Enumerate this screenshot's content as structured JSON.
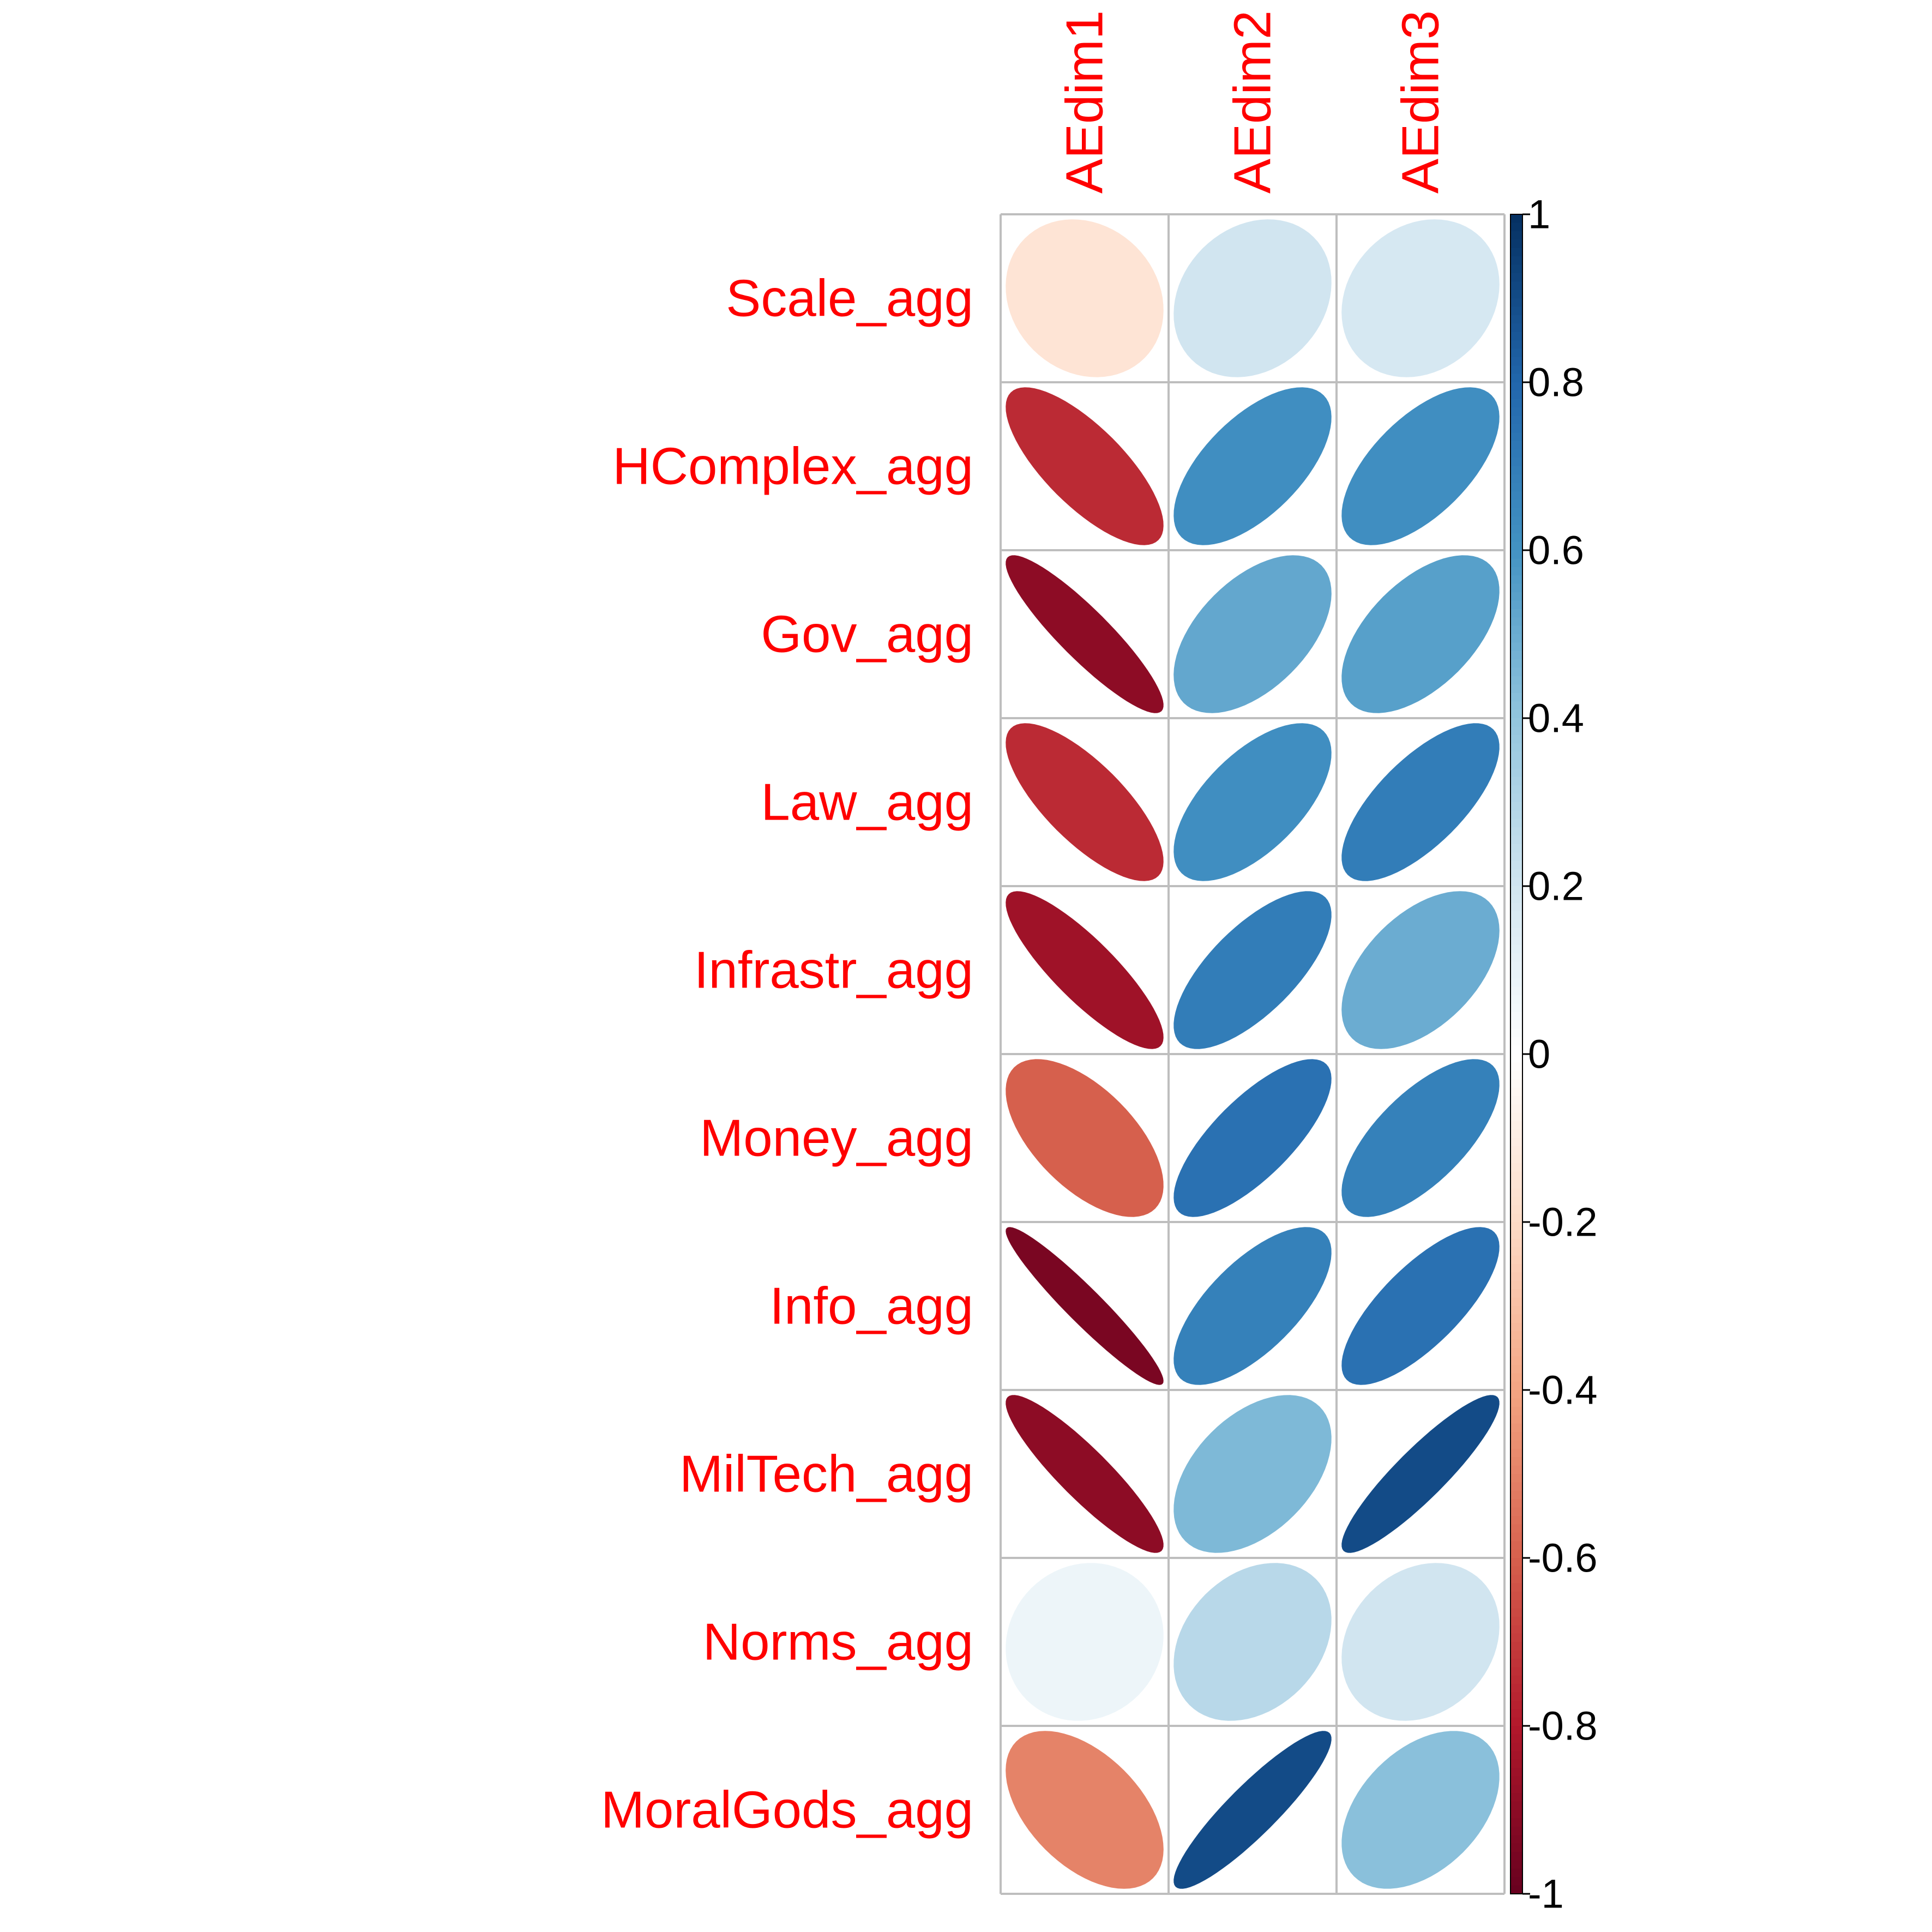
{
  "chart_data": {
    "type": "heatmap",
    "method": "ellipse",
    "rows": [
      "Scale_agg",
      "HComplex_agg",
      "Gov_agg",
      "Law_agg",
      "Infrastr_agg",
      "Money_agg",
      "Info_agg",
      "MilTech_agg",
      "Norms_agg",
      "MoralGods_agg"
    ],
    "columns": [
      "AEdim1",
      "AEdim2",
      "AEdim3"
    ],
    "values": [
      [
        -0.15,
        0.2,
        0.18
      ],
      [
        -0.75,
        0.62,
        0.62
      ],
      [
        -0.9,
        0.52,
        0.55
      ],
      [
        -0.75,
        0.62,
        0.7
      ],
      [
        -0.85,
        0.7,
        0.5
      ],
      [
        -0.6,
        0.75,
        0.68
      ],
      [
        -0.95,
        0.68,
        0.75
      ],
      [
        -0.9,
        0.45,
        0.9
      ],
      [
        0.08,
        0.28,
        0.2
      ],
      [
        -0.5,
        0.9,
        0.42
      ]
    ],
    "label_color": "#ff0000",
    "colorbar": {
      "ticks": [
        "1",
        "0.8",
        "0.6",
        "0.4",
        "0.2",
        "0",
        "-0.2",
        "-0.4",
        "-0.6",
        "-0.8",
        "-1"
      ],
      "range": [
        -1,
        1
      ],
      "palette": [
        "#67001F",
        "#B2182B",
        "#D6604D",
        "#F4A582",
        "#FDDBC7",
        "#FFFFFF",
        "#D1E5F0",
        "#92C5DE",
        "#4393C3",
        "#2166AC",
        "#053061"
      ]
    }
  }
}
